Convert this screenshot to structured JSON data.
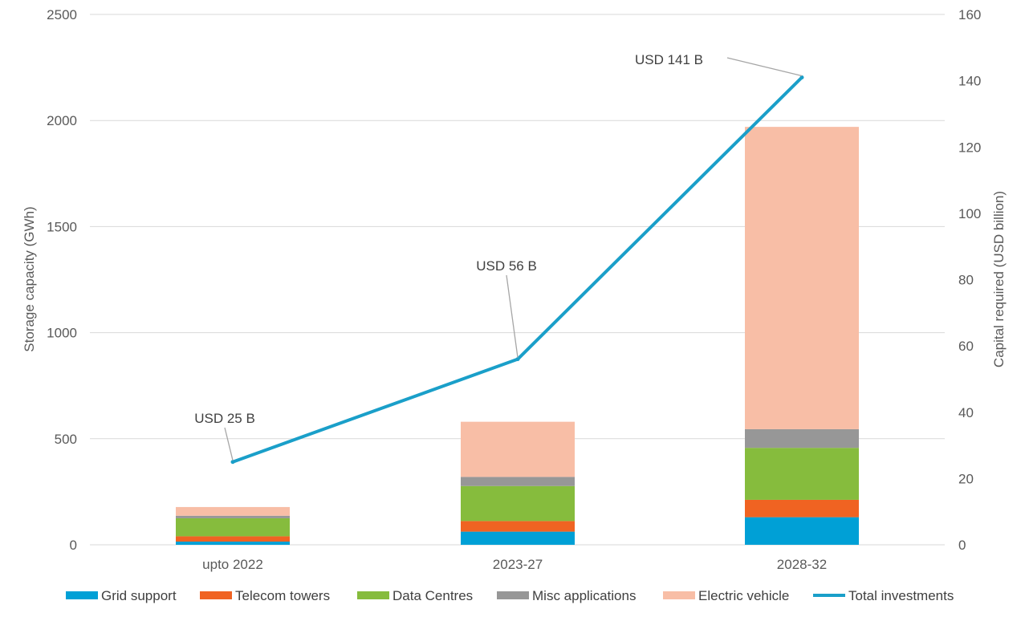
{
  "chart_data": {
    "type": "bar",
    "stacked": true,
    "categories": [
      "upto 2022",
      "2023-27",
      "2028-32"
    ],
    "series": [
      {
        "name": "Grid support",
        "values": [
          15,
          62,
          130
        ],
        "color": "#00A0D6"
      },
      {
        "name": "Telecom towers",
        "values": [
          25,
          50,
          82
        ],
        "color": "#F06322"
      },
      {
        "name": "Data Centres",
        "values": [
          85,
          165,
          245
        ],
        "color": "#86BC3D"
      },
      {
        "name": "Misc applications",
        "values": [
          12,
          43,
          88
        ],
        "color": "#979797"
      },
      {
        "name": "Electric vehicle",
        "values": [
          41,
          260,
          1425
        ],
        "color": "#F8BEA6"
      }
    ],
    "line_series": {
      "name": "Total investments",
      "axis": "right",
      "values": [
        25,
        56,
        141
      ],
      "color": "#1A9FC9",
      "labels": [
        "USD 25 B",
        "USD 56 B",
        "USD 141 B"
      ]
    },
    "ylabel": "Storage capacity (GWh)",
    "ylabel_right": "Capital required (USD billion)",
    "ylim": [
      0,
      2500
    ],
    "ylim_right": [
      0,
      160
    ],
    "yticks": [
      "0",
      "500",
      "1000",
      "1500",
      "2000",
      "2500"
    ],
    "yticks_right": [
      "0",
      "20",
      "40",
      "60",
      "80",
      "100",
      "120",
      "140",
      "160"
    ],
    "grid": true,
    "legend": "bottom"
  }
}
